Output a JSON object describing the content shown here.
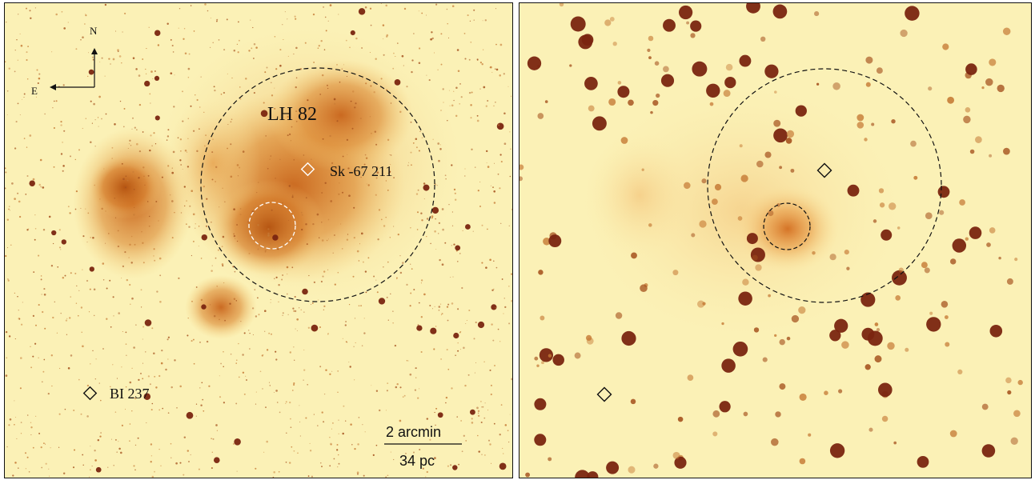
{
  "left_panel": {
    "compass": {
      "north": "N",
      "east": "E"
    },
    "labels": {
      "cluster": "LH 82",
      "star_sk": "Sk -67 211",
      "star_bi": "BI 237"
    },
    "scale_bar": {
      "top_label": "2 arcmin",
      "bottom_label": "34 pc"
    }
  },
  "colors": {
    "background": "#fbf1b6",
    "nebula": "#d9822b",
    "star": "#8a2c10",
    "dashed_outer": "#111111",
    "dashed_inner_left": "#ffffff"
  }
}
